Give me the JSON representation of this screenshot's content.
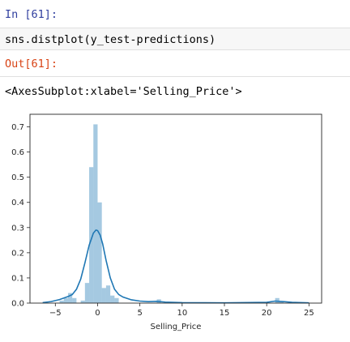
{
  "cell": {
    "in_prompt": "In [61]:",
    "code": "sns.distplot(y_test-predictions)",
    "out_prompt": "Out[61]:",
    "output_text": "<AxesSubplot:xlabel='Selling_Price'>"
  },
  "colors": {
    "in_prompt": "#303f9f",
    "out_prompt": "#d84315",
    "hist_fill": "#1f77b4",
    "hist_alpha": "0.4",
    "kde_line": "#1f77b4"
  },
  "chart_data": {
    "type": "bar",
    "title": "",
    "xlabel": "Selling_Price",
    "ylabel": "",
    "xlim": [
      -8,
      26.5
    ],
    "ylim": [
      0,
      0.75
    ],
    "xticks": [
      -5,
      0,
      5,
      10,
      15,
      20,
      25
    ],
    "yticks": [
      0.0,
      0.1,
      0.2,
      0.3,
      0.4,
      0.5,
      0.6,
      0.7
    ],
    "xtick_labels": [
      "−5",
      "0",
      "5",
      "10",
      "15",
      "20",
      "25"
    ],
    "ytick_labels": [
      "0.0",
      "0.1",
      "0.2",
      "0.3",
      "0.4",
      "0.5",
      "0.6",
      "0.7"
    ],
    "grid": false,
    "legend": "none",
    "histogram": {
      "bin_edges": [
        -6.0,
        -5.5,
        -5.0,
        -4.5,
        -4.0,
        -3.5,
        -3.0,
        -2.5,
        -2.0,
        -1.5,
        -1.0,
        -0.5,
        0.0,
        0.5,
        1.0,
        1.5,
        2.0,
        2.5,
        3.0,
        3.5,
        4.0,
        4.5,
        5.0,
        5.5,
        6.0,
        6.5,
        7.0,
        7.5,
        8.0,
        8.5,
        9.0,
        9.5,
        10.0,
        10.5,
        11.0,
        11.5,
        12.0,
        12.5,
        13.0,
        13.5,
        14.0,
        14.5,
        15.0,
        15.5,
        16.0,
        16.5,
        17.0,
        17.5,
        18.0,
        18.5,
        19.0,
        19.5,
        20.0,
        20.5,
        21.0,
        21.5,
        22.0,
        22.5,
        23.0
      ],
      "densities": [
        0.0,
        0.0,
        0.0,
        0.01,
        0.02,
        0.04,
        0.02,
        0.0,
        0.01,
        0.08,
        0.54,
        0.71,
        0.4,
        0.06,
        0.07,
        0.03,
        0.02,
        0.0,
        0.0,
        0.0,
        0.0,
        0.0,
        0.0,
        0.0,
        0.0,
        0.0,
        0.015,
        0.0,
        0.0,
        0.0,
        0.0,
        0.0,
        0.0,
        0.0,
        0.0,
        0.0,
        0.0,
        0.0,
        0.0,
        0.0,
        0.0,
        0.0,
        0.0,
        0.0,
        0.0,
        0.0,
        0.0,
        0.0,
        0.0,
        0.0,
        0.0,
        0.0,
        0.0,
        0.0,
        0.02,
        0.005,
        0.0,
        0.0
      ]
    },
    "kde": {
      "x": [
        -6.5,
        -5.5,
        -4.5,
        -4.0,
        -3.5,
        -3.0,
        -2.5,
        -2.0,
        -1.5,
        -1.0,
        -0.5,
        -0.2,
        0.0,
        0.3,
        0.6,
        1.0,
        1.5,
        2.0,
        2.5,
        3.0,
        4.0,
        5.0,
        6.0,
        7.0,
        8.0,
        10.0,
        15.0,
        20.0,
        21.0,
        22.0,
        23.0,
        25.0
      ],
      "y": [
        0.002,
        0.006,
        0.014,
        0.02,
        0.026,
        0.034,
        0.055,
        0.095,
        0.16,
        0.23,
        0.278,
        0.29,
        0.288,
        0.27,
        0.235,
        0.17,
        0.1,
        0.055,
        0.034,
        0.024,
        0.013,
        0.008,
        0.006,
        0.007,
        0.004,
        0.002,
        0.001,
        0.003,
        0.008,
        0.006,
        0.003,
        0.001
      ]
    }
  }
}
